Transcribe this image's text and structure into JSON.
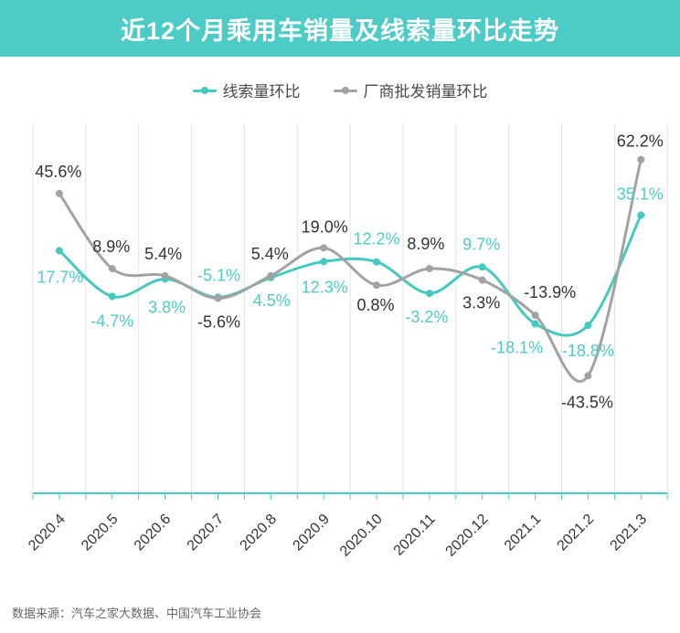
{
  "header": {
    "title": "近12个月乘用车销量及线索量环比走势"
  },
  "legend": {
    "items": [
      {
        "label": "线索量环比",
        "color": "#45C8BF"
      },
      {
        "label": "厂商批发销量环比",
        "color": "#A2A2A2"
      }
    ]
  },
  "chart_data": {
    "type": "line",
    "smooth": true,
    "title": "近12个月乘用车销量及线索量环比走势",
    "unit": "%",
    "categories": [
      "2020.4",
      "2020.5",
      "2020.6",
      "2020.7",
      "2020.8",
      "2020.9",
      "2020.10",
      "2020.11",
      "2020.12",
      "2021.1",
      "2021.2",
      "2021.3"
    ],
    "series": [
      {
        "name": "线索量环比",
        "color": "#45C8BF",
        "label_color": "#4CCCC3",
        "values": [
          17.7,
          -4.7,
          3.8,
          -5.1,
          4.5,
          12.3,
          12.2,
          -3.2,
          9.7,
          -18.1,
          -18.8,
          35.1
        ],
        "label_offsets": [
          [
            1,
            29
          ],
          [
            0,
            27
          ],
          [
            2,
            31
          ],
          [
            1,
            -24
          ],
          [
            1,
            25
          ],
          [
            1,
            28
          ],
          [
            0,
            -25
          ],
          [
            -3,
            26
          ],
          [
            -1,
            -25
          ],
          [
            -20,
            26
          ],
          [
            0,
            28
          ],
          [
            -1,
            -23
          ]
        ]
      },
      {
        "name": "厂商批发销量环比",
        "color": "#A2A2A2",
        "label_color": "#333333",
        "values": [
          45.6,
          8.9,
          5.4,
          -5.6,
          5.4,
          19.0,
          0.8,
          8.9,
          3.3,
          -13.9,
          -43.5,
          62.2
        ],
        "label_offsets": [
          [
            -1,
            -24
          ],
          [
            -1,
            -24
          ],
          [
            -2,
            -24
          ],
          [
            1,
            26
          ],
          [
            -1,
            -24
          ],
          [
            1,
            -23
          ],
          [
            -1,
            22
          ],
          [
            -4,
            -27
          ],
          [
            -1,
            25
          ],
          [
            16,
            -25
          ],
          [
            -1,
            29
          ],
          [
            -1,
            -20
          ]
        ]
      }
    ],
    "value_labels_visible": true,
    "grid": {
      "vertical_lines": true,
      "horizontal_lines": false
    },
    "legend_position": "top",
    "x_axis_color": "#4DCBC7",
    "gridline_color": "#E3E3E3",
    "x_label_color": "#333333",
    "y_axis_visible": false,
    "ylim": [
      -101,
      80
    ]
  },
  "footer": {
    "source": "数据来源：汽车之家大数据、中国汽车工业协会"
  },
  "colors": {
    "header_bg": "#4DCBC7",
    "title_text": "#FFFFFF"
  }
}
